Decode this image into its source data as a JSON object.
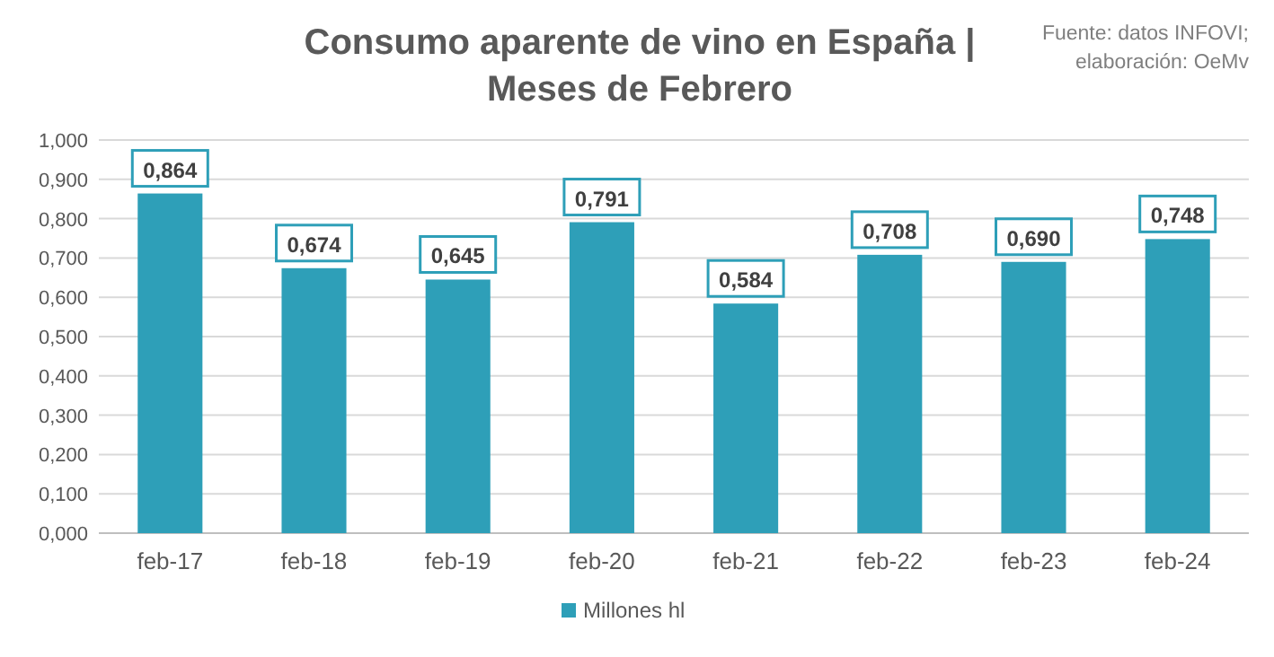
{
  "chart_data": {
    "type": "bar",
    "title": "Consumo aparente de vino en España | Meses de Febrero",
    "annotations": [
      "Fuente: datos INFOVI; elaboración: OeMv"
    ],
    "categories": [
      "feb-17",
      "feb-18",
      "feb-19",
      "feb-20",
      "feb-21",
      "feb-22",
      "feb-23",
      "feb-24"
    ],
    "series": [
      {
        "name": "Millones hl",
        "color": "#2e9fb8",
        "values": [
          0.864,
          0.674,
          0.645,
          0.791,
          0.584,
          0.708,
          0.69,
          0.748
        ],
        "value_labels": [
          "0,864",
          "0,674",
          "0,645",
          "0,791",
          "0,584",
          "0,708",
          "0,690",
          "0,748"
        ]
      }
    ],
    "ylim": [
      0,
      1
    ],
    "yticks": [
      {
        "value": 0,
        "label": "0,000"
      },
      {
        "value": 0.1,
        "label": "0,100"
      },
      {
        "value": 0.2,
        "label": "0,200"
      },
      {
        "value": 0.3,
        "label": "0,300"
      },
      {
        "value": 0.4,
        "label": "0,400"
      },
      {
        "value": 0.5,
        "label": "0,500"
      },
      {
        "value": 0.6,
        "label": "0,600"
      },
      {
        "value": 0.7,
        "label": "0,700"
      },
      {
        "value": 0.8,
        "label": "0,800"
      },
      {
        "value": 0.9,
        "label": "0,900"
      },
      {
        "value": 1,
        "label": "1,000"
      }
    ],
    "grid": "y",
    "legend": "bottom"
  }
}
